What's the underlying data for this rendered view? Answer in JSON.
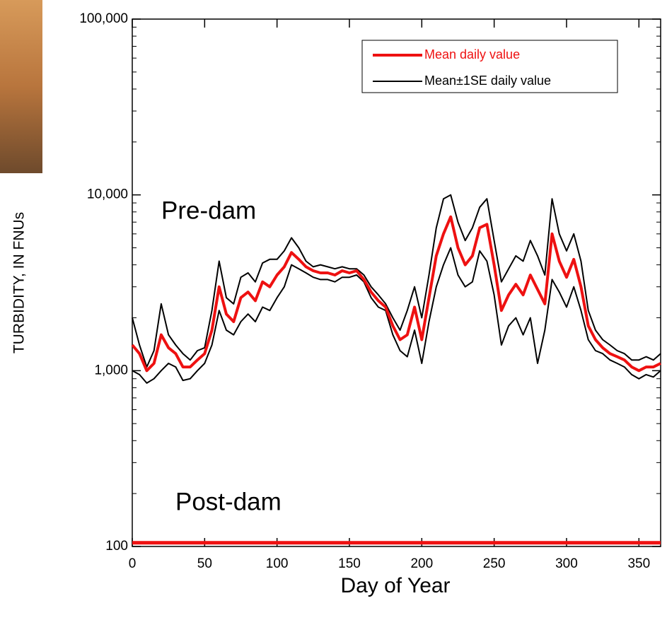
{
  "chart_data": {
    "type": "line",
    "y_label": "TURBIDITY, IN FNUs",
    "x_label": "Day of Year",
    "annotations": [
      "Pre-dam",
      "Post-dam"
    ],
    "log_y": true,
    "legend": "top-right",
    "xlim": [
      0,
      365
    ],
    "xticks": [
      0,
      50,
      100,
      150,
      200,
      250,
      300,
      350
    ],
    "ylim": [
      100,
      100000
    ],
    "yticks": [
      100,
      {
        "value": 1000,
        "label": "1,000"
      },
      {
        "value": 10000,
        "label": "10,000"
      },
      {
        "value": 100000,
        "label": "100,000"
      }
    ],
    "x": [
      0,
      5,
      10,
      15,
      20,
      25,
      30,
      35,
      40,
      45,
      50,
      55,
      60,
      65,
      70,
      75,
      80,
      85,
      90,
      95,
      100,
      105,
      110,
      115,
      120,
      125,
      130,
      135,
      140,
      145,
      150,
      155,
      160,
      165,
      170,
      175,
      180,
      185,
      190,
      195,
      200,
      205,
      210,
      215,
      220,
      225,
      230,
      235,
      240,
      245,
      250,
      255,
      260,
      265,
      270,
      275,
      280,
      285,
      290,
      295,
      300,
      305,
      310,
      315,
      320,
      325,
      330,
      335,
      340,
      345,
      350,
      355,
      360,
      365
    ],
    "series": [
      {
        "name": "Mean daily value",
        "color": "#ee1111",
        "values": [
          1400,
          1250,
          1000,
          1100,
          1600,
          1350,
          1250,
          1050,
          1050,
          1150,
          1250,
          1700,
          3000,
          2100,
          1900,
          2600,
          2800,
          2500,
          3200,
          3000,
          3500,
          3900,
          4700,
          4300,
          3900,
          3700,
          3600,
          3600,
          3500,
          3700,
          3600,
          3700,
          3300,
          2800,
          2500,
          2300,
          1800,
          1500,
          1600,
          2300,
          1500,
          2600,
          4500,
          6000,
          7500,
          5000,
          4000,
          4500,
          6500,
          6800,
          4000,
          2200,
          2700,
          3100,
          2700,
          3500,
          2900,
          2400,
          6000,
          4200,
          3400,
          4300,
          3000,
          1800,
          1500,
          1350,
          1250,
          1200,
          1150,
          1050,
          1000,
          1050,
          1050,
          1100
        ]
      },
      {
        "name": "Mean±1SE daily value",
        "color": "#000000",
        "values": [
          2000,
          1400,
          1050,
          1300,
          2400,
          1600,
          1400,
          1250,
          1150,
          1300,
          1350,
          2200,
          4200,
          2600,
          2400,
          3400,
          3600,
          3200,
          4100,
          4300,
          4300,
          4800,
          5700,
          5000,
          4200,
          3900,
          4000,
          3900,
          3800,
          3900,
          3800,
          3800,
          3500,
          3000,
          2700,
          2400,
          2000,
          1700,
          2200,
          3000,
          2000,
          3500,
          6500,
          9500,
          10000,
          7000,
          5500,
          6500,
          8500,
          9500,
          5500,
          3200,
          3800,
          4500,
          4200,
          5500,
          4500,
          3500,
          9500,
          6000,
          4800,
          6000,
          4200,
          2200,
          1700,
          1500,
          1400,
          1300,
          1250,
          1150,
          1150,
          1200,
          1150,
          1250
        ],
        "lower": [
          1000,
          950,
          850,
          900,
          1000,
          1100,
          1050,
          880,
          900,
          1000,
          1100,
          1400,
          2200,
          1700,
          1600,
          1900,
          2100,
          1900,
          2300,
          2200,
          2600,
          3000,
          4000,
          3800,
          3600,
          3400,
          3300,
          3300,
          3200,
          3400,
          3400,
          3500,
          3200,
          2600,
          2300,
          2200,
          1600,
          1300,
          1200,
          1700,
          1100,
          1900,
          3000,
          4000,
          5000,
          3500,
          3000,
          3200,
          4800,
          4200,
          2700,
          1400,
          1800,
          2000,
          1600,
          2000,
          1100,
          1700,
          3300,
          2800,
          2300,
          3000,
          2200,
          1500,
          1300,
          1250,
          1150,
          1100,
          1050,
          950,
          900,
          950,
          920,
          1000
        ]
      }
    ],
    "post_dam": {
      "color": "#ee1111",
      "x": [
        0,
        365
      ],
      "values": [
        105,
        105
      ]
    }
  }
}
